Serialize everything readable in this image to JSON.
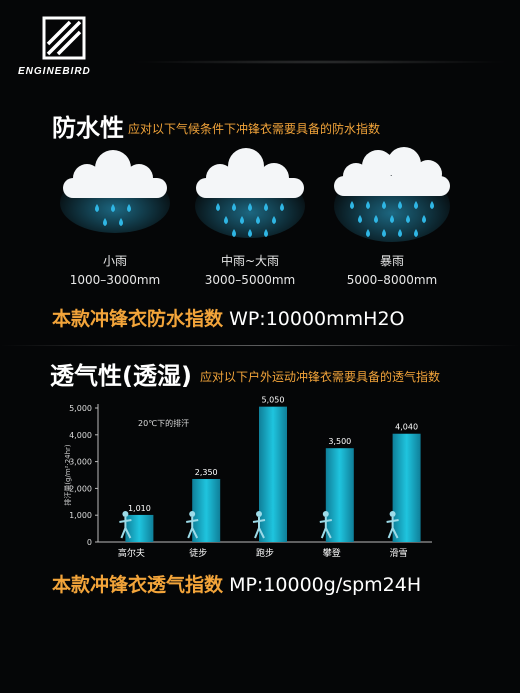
{
  "brand": {
    "name": "ENGINEBIRD"
  },
  "waterproof": {
    "title": "防水性",
    "subtitle": "应对以下气候条件下冲锋衣需要具备的防水指数",
    "levels": [
      {
        "name": "小雨",
        "range": "1000–3000mm"
      },
      {
        "name": "中雨~大雨",
        "range": "3000–5000mm"
      },
      {
        "name": "暴雨",
        "range": "5000–8000mm"
      }
    ],
    "index_label": "本款冲锋衣防水指数",
    "index_value": "WP:10000mmH2O"
  },
  "breathability": {
    "title": "透气性(透湿)",
    "subtitle": "应对以下户外运动冲锋衣需要具备的透气指数",
    "index_label": "本款冲锋衣透气指数",
    "index_value": "MP:10000g/spm24H"
  },
  "chart_data": {
    "type": "bar",
    "title": "",
    "annotation": "20℃下的排汗",
    "ylabel": "排汗量(g/m²·24hr)",
    "ylim": [
      0,
      5000
    ],
    "yticks": [
      "0",
      "1,000",
      "2,000",
      "3,000",
      "4,000",
      "5,000"
    ],
    "categories": [
      "高尔夫",
      "徒步",
      "跑步",
      "攀登",
      "滑雪"
    ],
    "values": [
      1010,
      2350,
      5050,
      3500,
      4040
    ],
    "value_labels": [
      "1,010",
      "2,350",
      "5,050",
      "3,500",
      "4,040"
    ],
    "bar_color": "#19aec8",
    "grid": false
  },
  "colors": {
    "accent": "#f2a43a",
    "rain": "#2fb6e4"
  }
}
